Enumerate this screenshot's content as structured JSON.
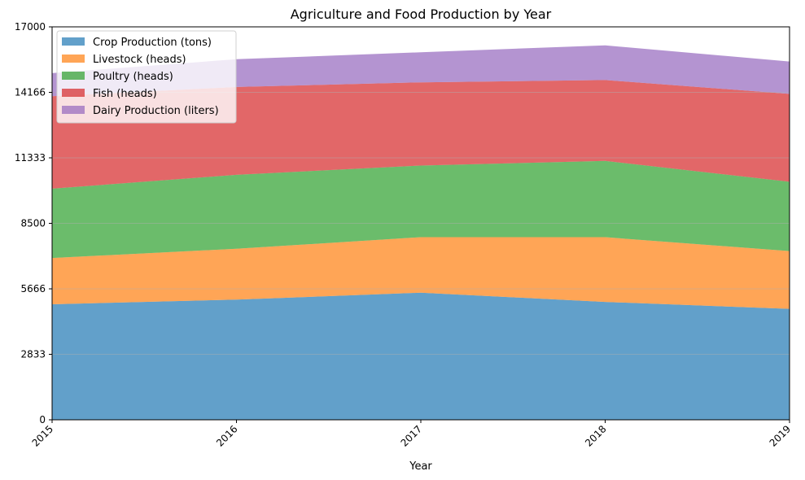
{
  "chart_data": {
    "type": "area",
    "stacked": true,
    "title": "Agriculture and Food Production by Year",
    "xlabel": "Year",
    "ylabel": "",
    "categories": [
      "2015",
      "2016",
      "2017",
      "2018",
      "2019"
    ],
    "ylim": [
      0,
      17000
    ],
    "yticks": [
      "0",
      "2833",
      "5666",
      "8500",
      "11333",
      "14166",
      "17000"
    ],
    "ytick_values": [
      0,
      2833,
      5666,
      8500,
      11333,
      14166,
      17000
    ],
    "grid": "horizontal",
    "legend_position": "upper-left",
    "series": [
      {
        "name": "Crop Production (tons)",
        "color": "#1f77b4",
        "values": [
          5000,
          5200,
          5500,
          5100,
          4800
        ]
      },
      {
        "name": "Livestock (heads)",
        "color": "#ff7f0e",
        "values": [
          2000,
          2200,
          2400,
          2800,
          2500
        ]
      },
      {
        "name": "Poultry (heads)",
        "color": "#2ca02c",
        "values": [
          3000,
          3200,
          3100,
          3300,
          3000
        ]
      },
      {
        "name": "Fish (heads)",
        "color": "#d62728",
        "values": [
          4000,
          3800,
          3600,
          3500,
          3800
        ]
      },
      {
        "name": "Dairy Production (liters)",
        "color": "#9467bd",
        "values": [
          1000,
          1200,
          1300,
          1500,
          1400
        ]
      }
    ]
  }
}
